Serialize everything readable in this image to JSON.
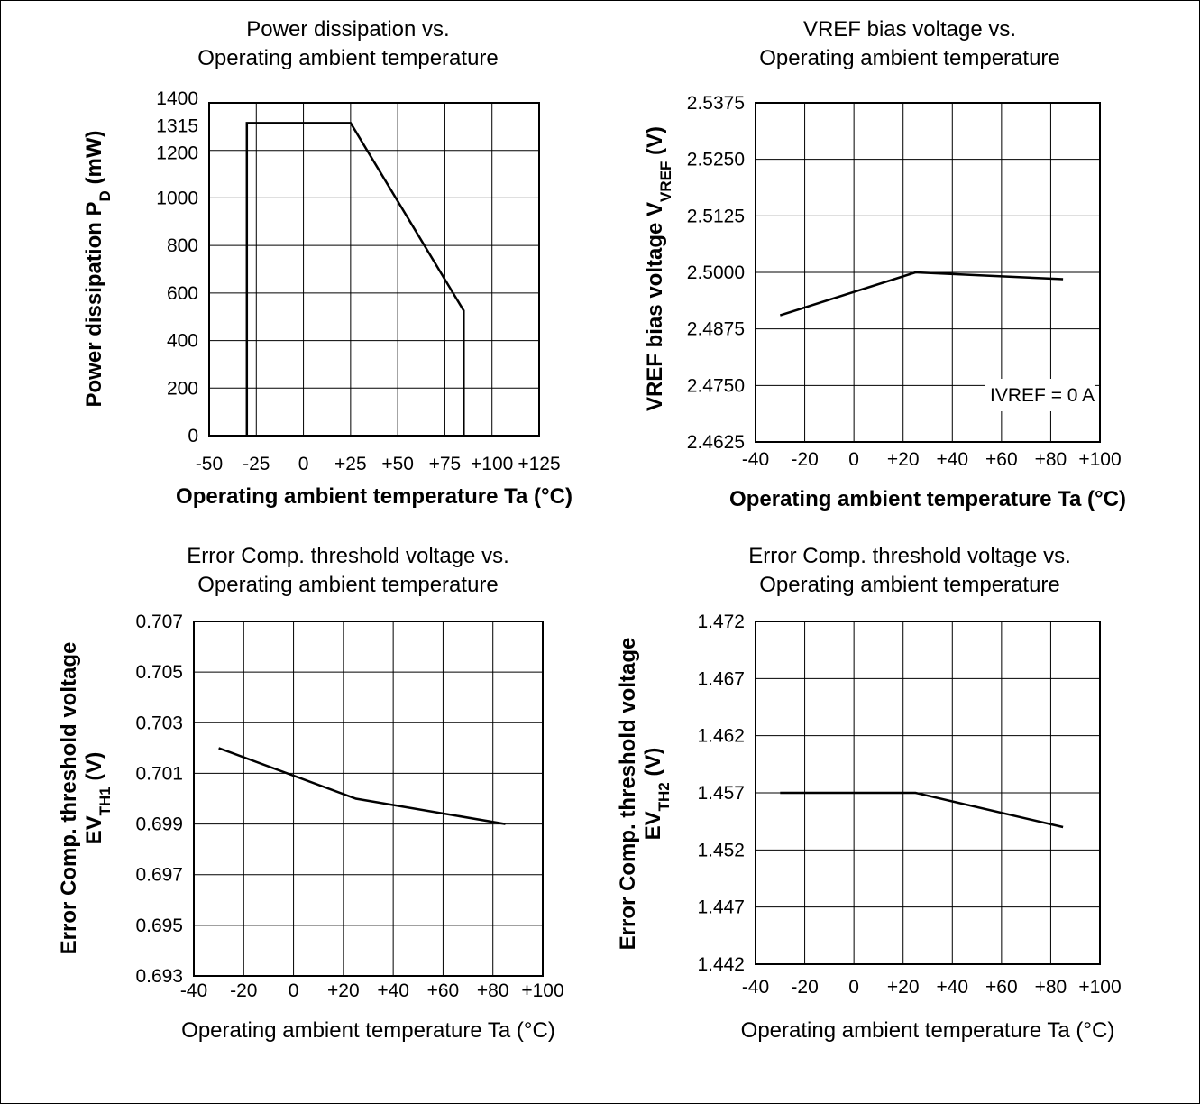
{
  "chart_data": [
    {
      "type": "line",
      "title_lines": [
        "Power dissipation vs.",
        "Operating ambient temperature"
      ],
      "xlabel": "Operating ambient temperature Ta (°C)",
      "ylabel": {
        "main": "Power dissipation P",
        "sub": "D",
        "unit": " (mW)"
      },
      "xlim": [
        -50,
        125
      ],
      "ylim": [
        0,
        1400
      ],
      "xticks": [
        -50,
        -25,
        0,
        25,
        50,
        75,
        100,
        125
      ],
      "xtick_labels": [
        "-50",
        "-25",
        "0",
        "+25",
        "+50",
        "+75",
        "+100",
        "+125"
      ],
      "yticks": [
        0,
        200,
        400,
        600,
        800,
        1000,
        1200,
        1315,
        1400
      ],
      "ytick_labels": [
        "0",
        "200",
        "400",
        "600",
        "800",
        "1000",
        "1200",
        "1315",
        "1400"
      ],
      "ygrid": [
        200,
        400,
        600,
        800,
        1000,
        1200
      ],
      "grid": true,
      "series": [
        {
          "x": [
            -30,
            -30,
            25,
            85,
            85
          ],
          "y": [
            0,
            1315,
            1315,
            526,
            0
          ]
        }
      ]
    },
    {
      "type": "line",
      "title_lines": [
        "VREF bias voltage vs.",
        "Operating ambient temperature"
      ],
      "xlabel": "Operating ambient temperature Ta (°C)",
      "ylabel": {
        "main": "VREF bias voltage V",
        "sub": "VREF",
        "unit": " (V)"
      },
      "xlim": [
        -40,
        100
      ],
      "ylim": [
        2.4625,
        2.5375
      ],
      "xticks": [
        -40,
        -20,
        0,
        20,
        40,
        60,
        80,
        100
      ],
      "xtick_labels": [
        "-40",
        "-20",
        "0",
        "+20",
        "+40",
        "+60",
        "+80",
        "+100"
      ],
      "yticks": [
        2.4625,
        2.475,
        2.4875,
        2.5,
        2.5125,
        2.525,
        2.5375
      ],
      "ytick_labels": [
        "2.4625",
        "2.4750",
        "2.4875",
        "2.5000",
        "2.5125",
        "2.5250",
        "2.5375"
      ],
      "grid": true,
      "annotation": {
        "main": "I",
        "sub": "VREF",
        "rest": " = 0 A"
      },
      "series": [
        {
          "x": [
            -30,
            25,
            85
          ],
          "y": [
            2.4905,
            2.5,
            2.4985
          ]
        }
      ]
    },
    {
      "type": "line",
      "title_lines": [
        "Error Comp. threshold voltage vs.",
        "Operating ambient temperature"
      ],
      "xlabel": "Operating ambient temperature Ta (°C)",
      "ylabel": {
        "line1": "Error Comp. threshold voltage",
        "main": "EV",
        "sub": "TH1",
        "unit": " (V)"
      },
      "xlim": [
        -40,
        100
      ],
      "ylim": [
        0.693,
        0.707
      ],
      "xticks": [
        -40,
        -20,
        0,
        20,
        40,
        60,
        80,
        100
      ],
      "xtick_labels": [
        "-40",
        "-20",
        "0",
        "+20",
        "+40",
        "+60",
        "+80",
        "+100"
      ],
      "yticks": [
        0.693,
        0.695,
        0.697,
        0.699,
        0.701,
        0.703,
        0.705,
        0.707
      ],
      "ytick_labels": [
        "0.693",
        "0.695",
        "0.697",
        "0.699",
        "0.701",
        "0.703",
        "0.705",
        "0.707"
      ],
      "grid": true,
      "series": [
        {
          "x": [
            -30,
            25,
            85
          ],
          "y": [
            0.702,
            0.7,
            0.699
          ]
        }
      ]
    },
    {
      "type": "line",
      "title_lines": [
        "Error Comp. threshold voltage vs.",
        "Operating ambient temperature"
      ],
      "xlabel": "Operating ambient temperature Ta (°C)",
      "ylabel": {
        "line1": "Error Comp. threshold voltage",
        "main": "EV",
        "sub": "TH2",
        "unit": " (V)"
      },
      "xlim": [
        -40,
        100
      ],
      "ylim": [
        1.442,
        1.472
      ],
      "xticks": [
        -40,
        -20,
        0,
        20,
        40,
        60,
        80,
        100
      ],
      "xtick_labels": [
        "-40",
        "-20",
        "0",
        "+20",
        "+40",
        "+60",
        "+80",
        "+100"
      ],
      "yticks": [
        1.442,
        1.447,
        1.452,
        1.457,
        1.462,
        1.467,
        1.472
      ],
      "ytick_labels": [
        "1.442",
        "1.447",
        "1.452",
        "1.457",
        "1.462",
        "1.467",
        "1.472"
      ],
      "grid": true,
      "series": [
        {
          "x": [
            -30,
            25,
            85
          ],
          "y": [
            1.457,
            1.457,
            1.454
          ]
        }
      ]
    }
  ]
}
